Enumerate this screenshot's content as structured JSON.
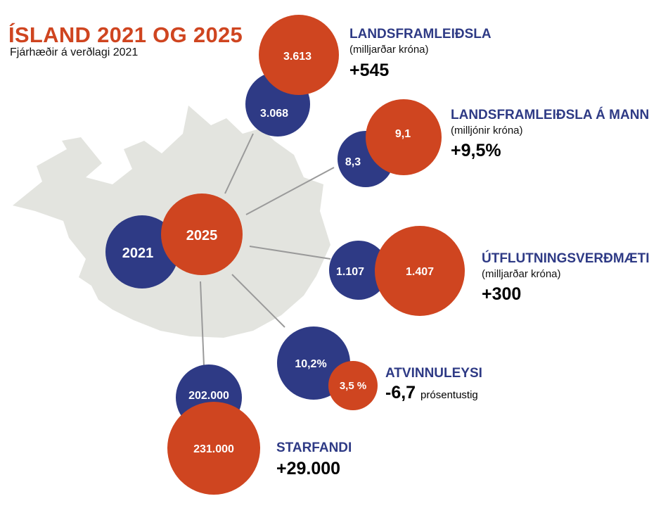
{
  "header": {
    "title": "ÍSLAND 2021 OG 2025",
    "subtitle": "Fjárhæðir á verðlagi 2021"
  },
  "colors": {
    "y2021": "#2e3a85",
    "y2025": "#cf4520",
    "map": "#e3e4df",
    "connector": "#9a9a9a"
  },
  "center": {
    "label_2021": "2021",
    "label_2025": "2025"
  },
  "metrics": [
    {
      "id": "gdp",
      "title": "LANDSFRAMLEIÐSLA",
      "unit": "(milljarðar króna)",
      "v2021": "3.068",
      "v2025": "3.613",
      "change": "+545",
      "change_unit": ""
    },
    {
      "id": "gdp-per-capita",
      "title": "LANDSFRAMLEIÐSLA Á MANN",
      "unit": "(milljónir króna)",
      "v2021": "8,3",
      "v2025": "9,1",
      "change": "+9,5%",
      "change_unit": ""
    },
    {
      "id": "exports",
      "title": "ÚTFLUTNINGSVERÐMÆTI",
      "unit": "(milljarðar króna)",
      "v2021": "1.107",
      "v2025": "1.407",
      "change": "+300",
      "change_unit": ""
    },
    {
      "id": "unemployment",
      "title": "ATVINNULEYSI",
      "unit": "",
      "v2021": "10,2%",
      "v2025": "3,5 %",
      "change": "-6,7",
      "change_unit": "prósentustig"
    },
    {
      "id": "employed",
      "title": "STARFANDI",
      "unit": "",
      "v2021": "202.000",
      "v2025": "231.000",
      "change": "+29.000",
      "change_unit": ""
    }
  ]
}
